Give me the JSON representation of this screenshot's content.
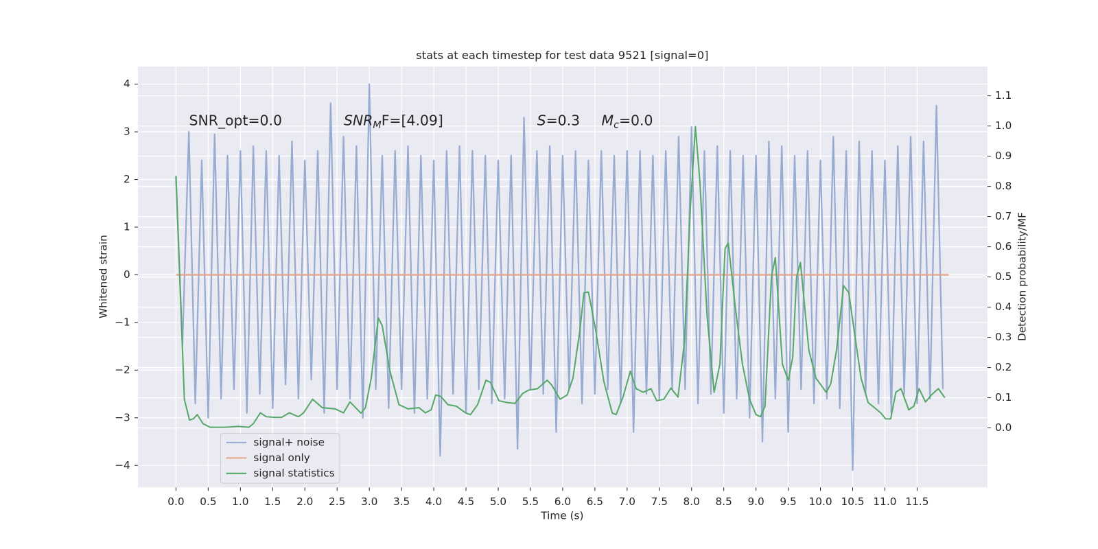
{
  "chart_data": {
    "type": "line",
    "title": "stats at each timestep for test data 9521 [signal=0]",
    "xlabel": "Time (s)",
    "ylabel": "Whitened strain",
    "y2label": "Detection probability/MF",
    "annotations": [
      {
        "base": "SNR_opt=0.0"
      },
      {
        "base": "SNR",
        "sub": "M",
        "rest": "F=[4.09]"
      },
      {
        "base": "S",
        "rest": "=0.3"
      },
      {
        "base": "M",
        "sub": "c",
        "rest": "=0.0"
      }
    ],
    "xlim": [
      -0.59,
      12.59
    ],
    "ylim": [
      -4.46,
      4.37
    ],
    "y2lim": [
      -0.197,
      1.197
    ],
    "xticks": [
      {
        "value": 0,
        "label": "0.0"
      },
      0.5,
      {
        "value": 1,
        "label": "1.0"
      },
      1.5,
      {
        "value": 2,
        "label": "2.0"
      },
      2.5,
      {
        "value": 3,
        "label": "3.0"
      },
      3.5,
      {
        "value": 4,
        "label": "4.0"
      },
      4.5,
      {
        "value": 5,
        "label": "5.0"
      },
      5.5,
      {
        "value": 6,
        "label": "6.0"
      },
      6.5,
      {
        "value": 7,
        "label": "7.0"
      },
      7.5,
      {
        "value": 8,
        "label": "8.0"
      },
      8.5,
      {
        "value": 9,
        "label": "9.0"
      },
      9.5,
      {
        "value": 10,
        "label": "10.0"
      },
      10.5,
      {
        "value": 11,
        "label": "11.0"
      },
      11.5
    ],
    "yticks": [
      {
        "value": -4,
        "label": "−4"
      },
      {
        "value": -3,
        "label": "−3"
      },
      {
        "value": -2,
        "label": "−2"
      },
      {
        "value": -1,
        "label": "−1"
      },
      0,
      1,
      2,
      3,
      4
    ],
    "y2ticks": [
      {
        "value": 0,
        "label": "0.0"
      },
      0.1,
      0.2,
      0.3,
      0.4,
      0.5,
      0.6,
      0.7,
      0.8,
      0.9,
      {
        "value": 1,
        "label": "1.0"
      },
      1.1
    ],
    "grid": true,
    "legend": "lower left",
    "series": [
      {
        "name": "signal+ noise",
        "color": "#98abd1",
        "axis": "y",
        "x": [
          0.0,
          0.1,
          0.2,
          0.3,
          0.4,
          0.5,
          0.6,
          0.7,
          0.8,
          0.9,
          1.0,
          1.1,
          1.2,
          1.3,
          1.4,
          1.5,
          1.6,
          1.7,
          1.8,
          1.9,
          2.0,
          2.1,
          2.2,
          2.3,
          2.4,
          2.5,
          2.6,
          2.7,
          2.8,
          2.9,
          3.0,
          3.1,
          3.2,
          3.3,
          3.4,
          3.5,
          3.6,
          3.7,
          3.8,
          3.9,
          4.0,
          4.1,
          4.2,
          4.3,
          4.4,
          4.5,
          4.6,
          4.7,
          4.8,
          4.9,
          5.0,
          5.1,
          5.2,
          5.3,
          5.4,
          5.5,
          5.6,
          5.7,
          5.8,
          5.9,
          6.0,
          6.1,
          6.2,
          6.3,
          6.4,
          6.5,
          6.6,
          6.7,
          6.8,
          6.9,
          7.0,
          7.1,
          7.2,
          7.3,
          7.4,
          7.5,
          7.6,
          7.7,
          7.8,
          7.9,
          8.0,
          8.1,
          8.2,
          8.3,
          8.4,
          8.5,
          8.6,
          8.7,
          8.8,
          8.9,
          9.0,
          9.1,
          9.2,
          9.3,
          9.4,
          9.5,
          9.6,
          9.7,
          9.8,
          9.9,
          10.0,
          10.1,
          10.2,
          10.3,
          10.4,
          10.5,
          10.6,
          10.7,
          10.8,
          10.9,
          11.0,
          11.1,
          11.2,
          11.3,
          11.4,
          11.5,
          11.6,
          11.7,
          11.8,
          11.9
        ],
        "values": [
          2.05,
          -1.5,
          3.0,
          -2.7,
          2.4,
          -3.0,
          2.95,
          -2.6,
          2.5,
          -2.4,
          2.6,
          -2.9,
          2.7,
          -2.5,
          2.6,
          -2.8,
          2.5,
          -2.3,
          2.8,
          -2.6,
          2.4,
          -2.2,
          2.6,
          -2.9,
          3.6,
          -2.4,
          2.9,
          -2.6,
          2.7,
          -3.0,
          4.0,
          -2.4,
          2.5,
          -2.8,
          2.6,
          -2.4,
          2.7,
          -2.9,
          2.5,
          -2.6,
          2.4,
          -3.8,
          2.6,
          -2.5,
          2.7,
          -2.9,
          2.6,
          -2.4,
          2.5,
          -2.7,
          2.4,
          -2.6,
          2.5,
          -3.65,
          3.3,
          -2.4,
          2.6,
          -2.5,
          2.7,
          -3.3,
          2.5,
          -2.4,
          2.6,
          -2.7,
          2.4,
          -2.5,
          2.6,
          -2.4,
          2.5,
          -2.7,
          2.6,
          -3.3,
          2.6,
          -2.5,
          2.5,
          -2.6,
          2.6,
          -2.4,
          2.9,
          -2.4,
          3.1,
          -2.7,
          2.6,
          -2.5,
          2.7,
          -2.9,
          2.6,
          -2.6,
          2.5,
          -3.0,
          2.5,
          -3.5,
          2.8,
          -2.6,
          2.7,
          -3.3,
          2.5,
          -2.4,
          2.6,
          -2.7,
          2.4,
          -2.6,
          2.9,
          -2.8,
          2.6,
          -4.1,
          2.8,
          -2.5,
          2.6,
          -2.7,
          2.4,
          -2.9,
          2.7,
          -2.5,
          2.9,
          -2.7,
          2.8,
          -2.6,
          3.55,
          -2.4
        ]
      },
      {
        "name": "signal only",
        "color": "#e7a58a",
        "axis": "y",
        "x": [
          0.0,
          11.99
        ],
        "values": [
          0,
          0
        ]
      },
      {
        "name": "signal statistics",
        "color": "#55a868",
        "axis": "y2",
        "x": [
          0,
          0.13,
          0.21,
          0.27,
          0.33,
          0.42,
          0.53,
          0.75,
          0.97,
          1.13,
          1.2,
          1.31,
          1.4,
          1.53,
          1.64,
          1.76,
          1.9,
          1.98,
          2.12,
          2.27,
          2.47,
          2.6,
          2.7,
          2.87,
          2.94,
          3.03,
          3.14,
          3.2,
          3.32,
          3.46,
          3.6,
          3.77,
          3.87,
          3.96,
          4.03,
          4.11,
          4.22,
          4.35,
          4.5,
          4.57,
          4.68,
          4.81,
          4.88,
          5.01,
          5.14,
          5.26,
          5.38,
          5.47,
          5.61,
          5.76,
          5.83,
          5.96,
          6.07,
          6.16,
          6.27,
          6.33,
          6.4,
          6.51,
          6.64,
          6.77,
          6.83,
          6.94,
          7.05,
          7.14,
          7.25,
          7.37,
          7.46,
          7.57,
          7.68,
          7.79,
          7.89,
          7.98,
          8.06,
          8.13,
          8.24,
          8.35,
          8.44,
          8.52,
          8.57,
          8.68,
          8.79,
          8.9,
          9.0,
          9.07,
          9.14,
          9.24,
          9.3,
          9.41,
          9.5,
          9.57,
          9.63,
          9.69,
          9.82,
          9.93,
          10.09,
          10.16,
          10.25,
          10.36,
          10.44,
          10.52,
          10.63,
          10.74,
          10.85,
          10.94,
          11.01,
          11.09,
          11.17,
          11.25,
          11.37,
          11.45,
          11.53,
          11.63,
          11.73,
          11.83,
          11.93
        ],
        "values": [
          0.835,
          0.095,
          0.026,
          0.03,
          0.044,
          0.014,
          0.002,
          0.002,
          0.005,
          0.002,
          0.014,
          0.05,
          0.037,
          0.035,
          0.035,
          0.05,
          0.037,
          0.05,
          0.095,
          0.067,
          0.063,
          0.05,
          0.086,
          0.049,
          0.067,
          0.165,
          0.364,
          0.339,
          0.188,
          0.077,
          0.063,
          0.067,
          0.05,
          0.06,
          0.109,
          0.104,
          0.077,
          0.072,
          0.049,
          0.044,
          0.077,
          0.158,
          0.151,
          0.09,
          0.084,
          0.081,
          0.114,
          0.125,
          0.13,
          0.158,
          0.142,
          0.095,
          0.109,
          0.165,
          0.327,
          0.448,
          0.45,
          0.327,
          0.153,
          0.049,
          0.044,
          0.104,
          0.188,
          0.13,
          0.118,
          0.13,
          0.09,
          0.095,
          0.132,
          0.102,
          0.285,
          0.722,
          0.998,
          0.814,
          0.374,
          0.118,
          0.211,
          0.594,
          0.613,
          0.397,
          0.211,
          0.095,
          0.044,
          0.037,
          0.072,
          0.501,
          0.564,
          0.211,
          0.158,
          0.234,
          0.501,
          0.548,
          0.258,
          0.165,
          0.118,
          0.146,
          0.258,
          0.471,
          0.448,
          0.327,
          0.165,
          0.084,
          0.065,
          0.049,
          0.03,
          0.03,
          0.118,
          0.13,
          0.06,
          0.072,
          0.13,
          0.086,
          0.111,
          0.13,
          0.1
        ]
      }
    ]
  }
}
